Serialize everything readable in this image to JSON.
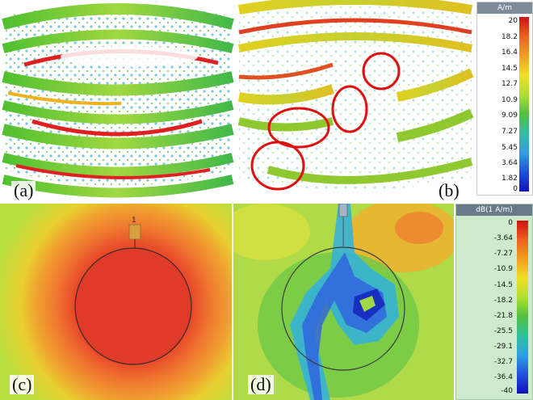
{
  "panels": {
    "a": {
      "label": "(a)"
    },
    "b": {
      "label": "(b)"
    },
    "c": {
      "label": "(c)",
      "port_label": "1"
    },
    "d": {
      "label": "(d)"
    }
  },
  "legend_top": {
    "unit": "A/m",
    "ticks": [
      "20",
      "18.2",
      "16.4",
      "14.5",
      "12.7",
      "10.9",
      "9.09",
      "7.27",
      "5.45",
      "3.64",
      "1.82",
      "0"
    ]
  },
  "legend_bottom": {
    "unit": "dB(1 A/m)",
    "ticks": [
      "0",
      "-3.64",
      "-7.27",
      "-10.9",
      "-14.5",
      "-18.2",
      "-21.8",
      "-25.5",
      "-29.1",
      "-32.7",
      "-36.4",
      "-40"
    ]
  },
  "colors": {
    "red": "#e02020",
    "orange": "#f08020",
    "yellow": "#f0e020",
    "green": "#50c030",
    "cyan": "#30c0d0",
    "blue": "#2040e0",
    "highlight_circle": "#e01010"
  }
}
